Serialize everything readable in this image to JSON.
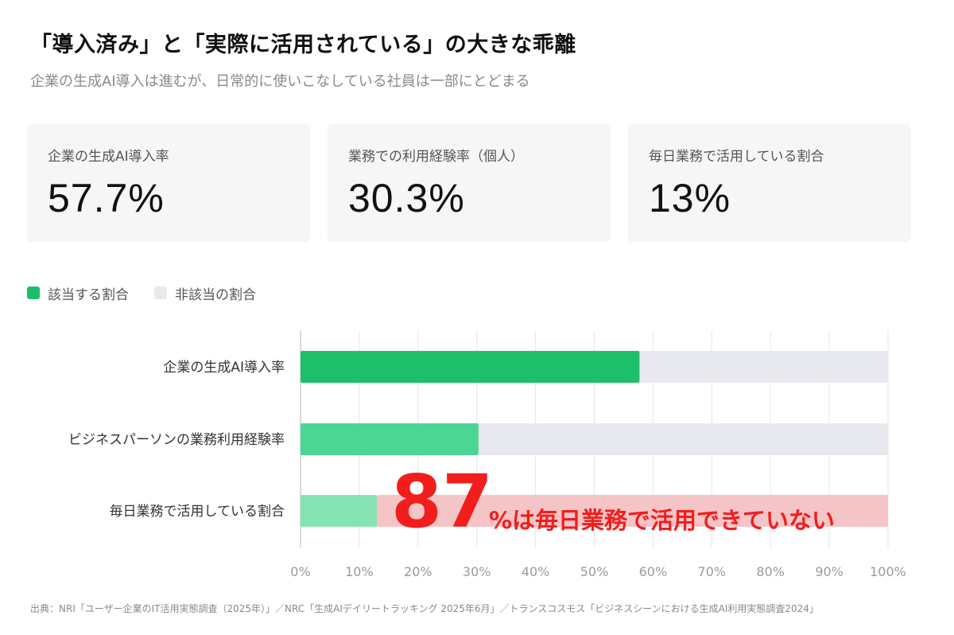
{
  "header": {
    "title": "「導入済み」と「実際に活用されている」の大きな乖離",
    "subtitle": "企業の生成AI導入は進むが、日常的に使いこなしている社員は一部にとどまる"
  },
  "cards": [
    {
      "label": "企業の生成AI導入率",
      "value": "57.7%"
    },
    {
      "label": "業務での利用経験率（個人）",
      "value": "30.3%"
    },
    {
      "label": "毎日業務で活用している割合",
      "value": "13%"
    }
  ],
  "legend": {
    "applicable": "該当する割合",
    "not_applicable": "非該当の割合"
  },
  "colors": {
    "bar_green_1": "#1dbf6b",
    "bar_green_2": "#4cd694",
    "bar_green_3": "#85e3b3",
    "bar_remainder": "#e8e8ef",
    "highlight_fill": "#f4c4c7",
    "highlight_text": "#f21d1d",
    "grid": "#e6e6e6"
  },
  "chart_data": {
    "type": "bar",
    "orientation": "horizontal",
    "stacked": true,
    "categories": [
      "企業の生成AI導入率",
      "ビジネスパーソンの業務利用経験率",
      "毎日業務で活用している割合"
    ],
    "series": [
      {
        "name": "該当する割合",
        "values": [
          57.7,
          30.3,
          13
        ]
      },
      {
        "name": "非該当の割合",
        "values": [
          42.3,
          69.7,
          87
        ]
      }
    ],
    "xlim": [
      0,
      100
    ],
    "xticks": [
      "0%",
      "10%",
      "20%",
      "30%",
      "40%",
      "50%",
      "60%",
      "70%",
      "80%",
      "90%",
      "100%"
    ],
    "grid": true,
    "legend": "top-left",
    "annotation": {
      "number": "87",
      "text": "%は毎日業務で活用できていない"
    }
  },
  "footer": {
    "source": "出典：NRI「ユーザー企業のIT活用実態調査（2025年）」／NRC「生成AIデイリートラッキング 2025年6月」／トランスコスモス「ビジネスシーンにおける生成AI利用実態調査2024」"
  }
}
